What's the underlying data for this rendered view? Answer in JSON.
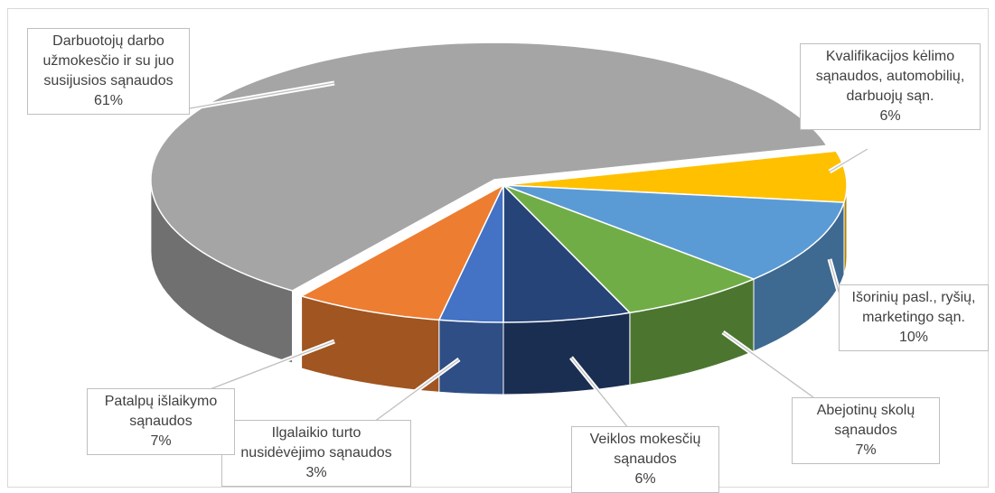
{
  "chart_data": {
    "type": "pie",
    "style": "3d-exploded",
    "title": "",
    "slices": [
      {
        "label": [
          "Kvalifikacijos kėlimo",
          "sąnaudos, automobilių,",
          "darbuojų sąn."
        ],
        "percent_label": "6%",
        "value": 6,
        "color": "#ffc000"
      },
      {
        "label": [
          "Išorinių pasl., ryšių,",
          "marketingo sąn."
        ],
        "percent_label": "10%",
        "value": 10,
        "color": "#5b9bd5"
      },
      {
        "label": [
          "Abejotinų skolų",
          "sąnaudos"
        ],
        "percent_label": "7%",
        "value": 7,
        "color": "#70ad47"
      },
      {
        "label": [
          "Veiklos mokesčių",
          "sąnaudos"
        ],
        "percent_label": "6%",
        "value": 6,
        "color": "#264478"
      },
      {
        "label": [
          "Ilgalaikio turto",
          "nusidėvėjimo sąnaudos"
        ],
        "percent_label": "3%",
        "value": 3,
        "color": "#4472c4"
      },
      {
        "label": [
          "Patalpų išlaikymo",
          "sąnaudos"
        ],
        "percent_label": "7%",
        "value": 7,
        "color": "#ed7d31"
      },
      {
        "label": [
          "Darbuotojų darbo",
          "užmokesčio ir su juo",
          "susijusios sąnaudos"
        ],
        "percent_label": "61%",
        "value": 61,
        "color": "#a5a5a5"
      }
    ]
  }
}
